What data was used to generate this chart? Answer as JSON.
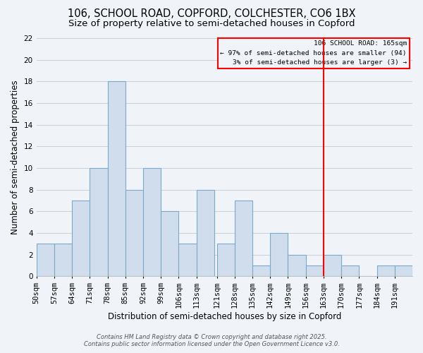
{
  "title": "106, SCHOOL ROAD, COPFORD, COLCHESTER, CO6 1BX",
  "subtitle": "Size of property relative to semi-detached houses in Copford",
  "xlabel": "Distribution of semi-detached houses by size in Copford",
  "ylabel": "Number of semi-detached properties",
  "bin_labels": [
    "50sqm",
    "57sqm",
    "64sqm",
    "71sqm",
    "78sqm",
    "85sqm",
    "92sqm",
    "99sqm",
    "106sqm",
    "113sqm",
    "121sqm",
    "128sqm",
    "135sqm",
    "142sqm",
    "149sqm",
    "156sqm",
    "163sqm",
    "170sqm",
    "177sqm",
    "184sqm",
    "191sqm"
  ],
  "bin_edges": [
    50,
    57,
    64,
    71,
    78,
    85,
    92,
    99,
    106,
    113,
    121,
    128,
    135,
    142,
    149,
    156,
    163,
    170,
    177,
    184,
    191,
    198
  ],
  "counts": [
    3,
    3,
    7,
    10,
    18,
    8,
    10,
    6,
    3,
    8,
    3,
    7,
    1,
    4,
    2,
    1,
    2,
    1,
    0,
    1,
    1
  ],
  "bar_color": "#cfdded",
  "bar_edge_color": "#7aaac8",
  "grid_color": "#c8d0dc",
  "background_color": "#f0f4f8",
  "vline_x": 163,
  "vline_color": "red",
  "legend_title": "106 SCHOOL ROAD: 165sqm",
  "legend_line1": "← 97% of semi-detached houses are smaller (94)",
  "legend_line2": "3% of semi-detached houses are larger (3) →",
  "ylim": [
    0,
    22
  ],
  "yticks": [
    0,
    2,
    4,
    6,
    8,
    10,
    12,
    14,
    16,
    18,
    20,
    22
  ],
  "footer1": "Contains HM Land Registry data © Crown copyright and database right 2025.",
  "footer2": "Contains public sector information licensed under the Open Government Licence v3.0.",
  "title_fontsize": 10.5,
  "subtitle_fontsize": 9.5,
  "axis_label_fontsize": 8.5,
  "tick_fontsize": 7.5,
  "footer_fontsize": 6.0
}
